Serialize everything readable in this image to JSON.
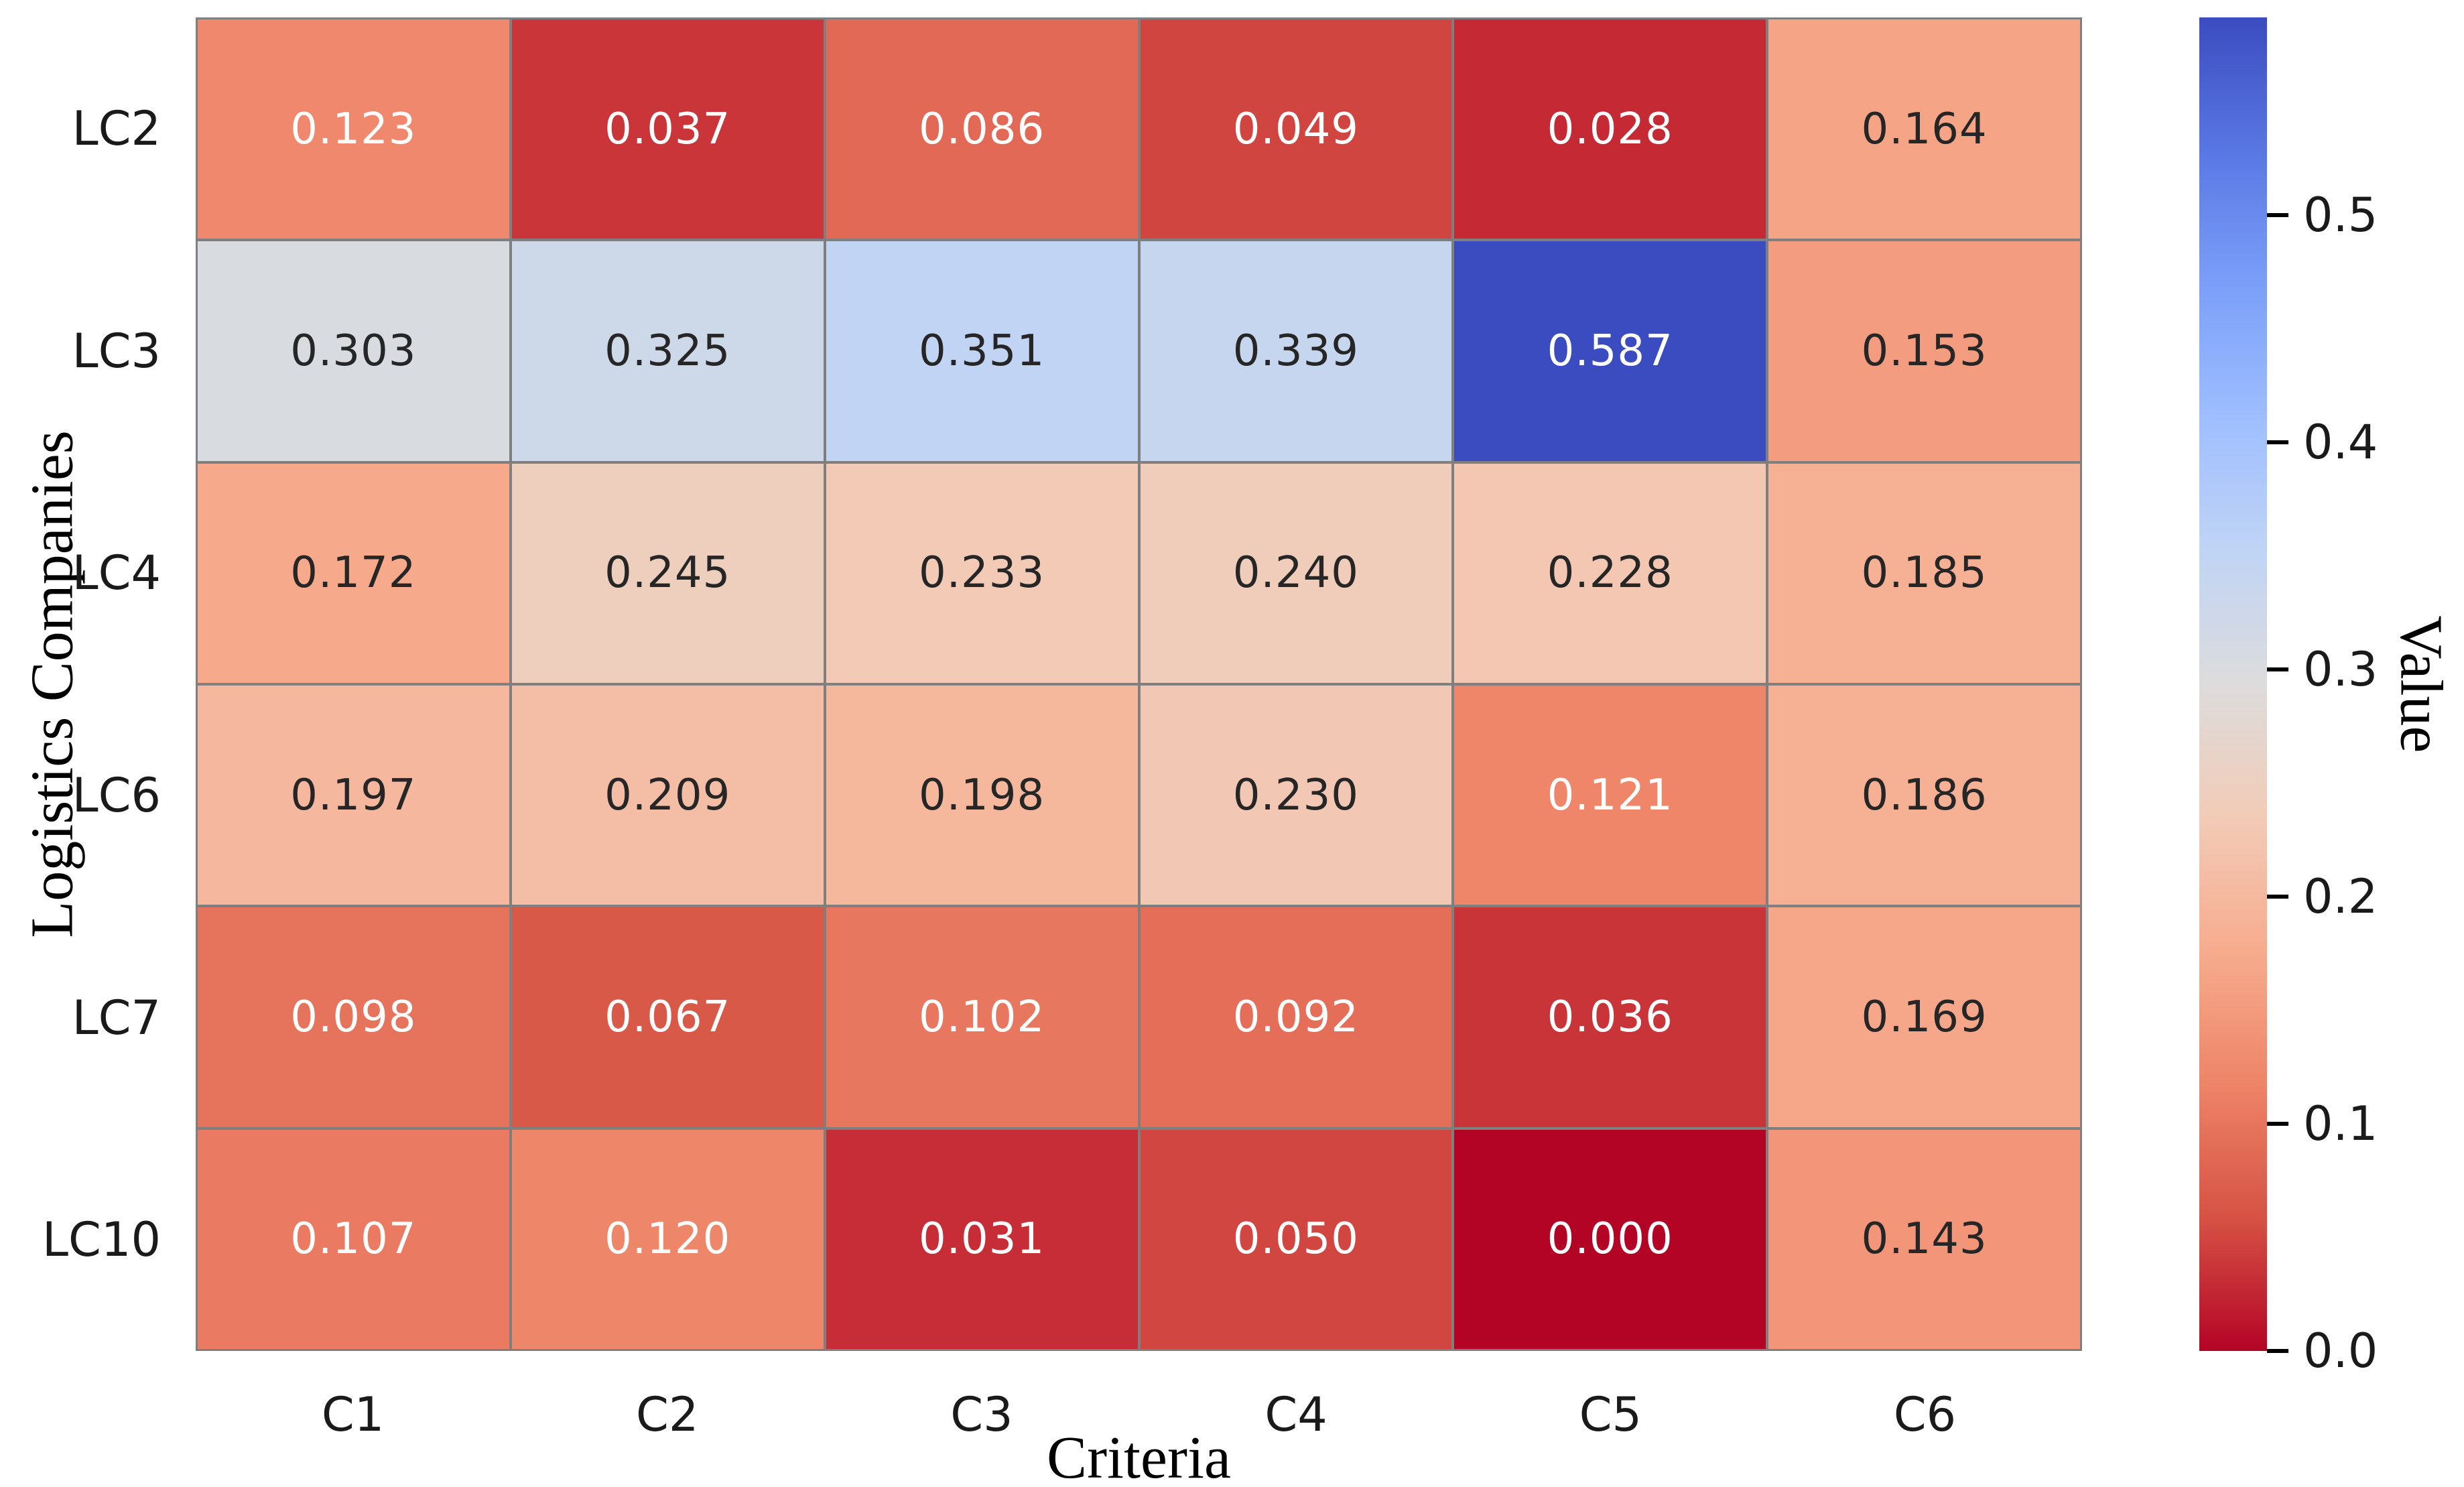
{
  "chart_data": {
    "type": "heatmap",
    "title": "",
    "xlabel": "Criteria",
    "ylabel": "Logistics Companies",
    "x_categories": [
      "C1",
      "C2",
      "C3",
      "C4",
      "C5",
      "C6"
    ],
    "y_categories": [
      "LC2",
      "LC3",
      "LC4",
      "LC6",
      "LC7",
      "LC10"
    ],
    "values": [
      [
        0.123,
        0.037,
        0.086,
        0.049,
        0.028,
        0.164
      ],
      [
        0.303,
        0.325,
        0.351,
        0.339,
        0.587,
        0.153
      ],
      [
        0.172,
        0.245,
        0.233,
        0.24,
        0.228,
        0.185
      ],
      [
        0.197,
        0.209,
        0.198,
        0.23,
        0.121,
        0.186
      ],
      [
        0.098,
        0.067,
        0.102,
        0.092,
        0.036,
        0.169
      ],
      [
        0.107,
        0.12,
        0.031,
        0.05,
        0.0,
        0.143
      ]
    ],
    "annotation_decimals": 3,
    "vmin": 0.0,
    "vmax": 0.587,
    "grid_on": true,
    "grid_color": "#7f7f7f",
    "colormap": {
      "name": "coolwarm_r",
      "coolwarm_stops": [
        [
          0.0,
          "#3b4cc0"
        ],
        [
          0.1,
          "#5977e3"
        ],
        [
          0.2,
          "#7b9ff9"
        ],
        [
          0.3,
          "#9ebeff"
        ],
        [
          0.4,
          "#c0d4f5"
        ],
        [
          0.5,
          "#dddcdc"
        ],
        [
          0.6,
          "#f2cbb7"
        ],
        [
          0.7,
          "#f7ac8e"
        ],
        [
          0.8,
          "#ee8468"
        ],
        [
          0.9,
          "#d65244"
        ],
        [
          1.0,
          "#b40426"
        ]
      ]
    },
    "annotation_colors": {
      "on_dark": "#ffffff",
      "on_light": "#262626"
    },
    "luminance_threshold": 0.408,
    "colorbar": {
      "label": "Value",
      "position": "right",
      "tick_values": [
        0.0,
        0.1,
        0.2,
        0.3,
        0.4,
        0.5
      ],
      "tick_labels": [
        "0.0",
        "0.1",
        "0.2",
        "0.3",
        "0.4",
        "0.5"
      ]
    }
  }
}
